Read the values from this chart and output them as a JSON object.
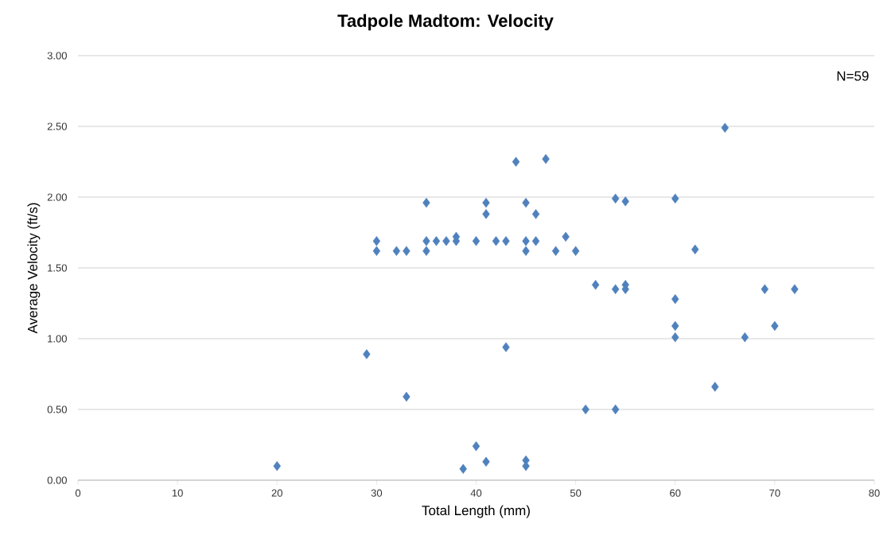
{
  "chart_data": {
    "type": "scatter",
    "title": "Tadpole Madtom: Velocity",
    "xlabel": "Total Length (mm)",
    "ylabel": "Average Velocity (ft/s)",
    "annotations": [
      "N=59"
    ],
    "xlim": [
      0,
      80
    ],
    "xticks": [
      0,
      10,
      20,
      30,
      40,
      50,
      60,
      70,
      80
    ],
    "ylim": [
      0,
      3
    ],
    "yticks": [
      {
        "value": 0,
        "label": "0.00"
      },
      {
        "value": 0.5,
        "label": "0.50"
      },
      {
        "value": 1,
        "label": "1.00"
      },
      {
        "value": 1.5,
        "label": "1.50"
      },
      {
        "value": 2,
        "label": "2.00"
      },
      {
        "value": 2.5,
        "label": "2.50"
      },
      {
        "value": 3,
        "label": "3.00"
      }
    ],
    "grid": "y",
    "marker": "diamond",
    "series": [
      {
        "color": "#4f81bd",
        "x": [
          20,
          29,
          30,
          30,
          32,
          33,
          33,
          35,
          35,
          35,
          36,
          37,
          38,
          38,
          38.7,
          40,
          40,
          41,
          41,
          41,
          42,
          43,
          43,
          44,
          45,
          45,
          45,
          45,
          45,
          46,
          46,
          47,
          48,
          49,
          50,
          51,
          52,
          54,
          54,
          54,
          55,
          55,
          55,
          60,
          60,
          60,
          60,
          62,
          64,
          65,
          67,
          69,
          70,
          72
        ],
        "values": [
          0.1,
          0.89,
          1.69,
          1.62,
          1.62,
          1.62,
          0.59,
          1.96,
          1.69,
          1.62,
          1.69,
          1.69,
          1.72,
          1.69,
          0.08,
          1.69,
          0.24,
          1.96,
          1.88,
          0.13,
          1.69,
          1.69,
          0.94,
          2.25,
          1.96,
          1.69,
          1.62,
          0.14,
          0.1,
          1.88,
          1.69,
          2.27,
          1.62,
          1.72,
          1.62,
          0.5,
          1.38,
          1.99,
          1.35,
          0.5,
          1.97,
          1.38,
          1.35,
          1.99,
          1.28,
          1.09,
          1.01,
          1.63,
          0.66,
          2.49,
          1.01,
          1.35,
          1.09,
          1.35
        ]
      }
    ]
  }
}
